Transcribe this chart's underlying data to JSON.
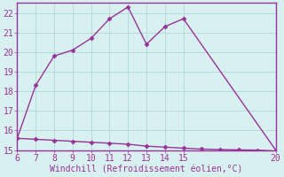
{
  "xlabel": "Windchill (Refroidissement éolien,°C)",
  "x_main": [
    6,
    7,
    8,
    9,
    10,
    11,
    12,
    13,
    14,
    15,
    20
  ],
  "y_main": [
    15.6,
    18.3,
    19.8,
    20.1,
    20.7,
    21.7,
    22.3,
    20.4,
    21.3,
    21.7,
    15.0
  ],
  "x_flat": [
    6,
    7,
    8,
    9,
    10,
    11,
    12,
    13,
    14,
    15,
    16,
    17,
    18,
    19,
    20
  ],
  "y_flat": [
    15.6,
    15.55,
    15.5,
    15.45,
    15.4,
    15.35,
    15.3,
    15.2,
    15.15,
    15.1,
    15.05,
    15.03,
    15.01,
    15.0,
    14.95
  ],
  "line_color": "#993399",
  "bg_color": "#d8f0f0",
  "grid_color": "#b0d8d8",
  "border_color": "#993399",
  "xlim": [
    6,
    20
  ],
  "ylim": [
    15,
    22.5
  ],
  "yticks": [
    15,
    16,
    17,
    18,
    19,
    20,
    21,
    22
  ],
  "xticks": [
    6,
    7,
    8,
    9,
    10,
    11,
    12,
    13,
    14,
    15,
    20
  ],
  "marker": "D",
  "markersize": 2.5,
  "linewidth": 1.0,
  "tick_fontsize": 7,
  "xlabel_fontsize": 7
}
